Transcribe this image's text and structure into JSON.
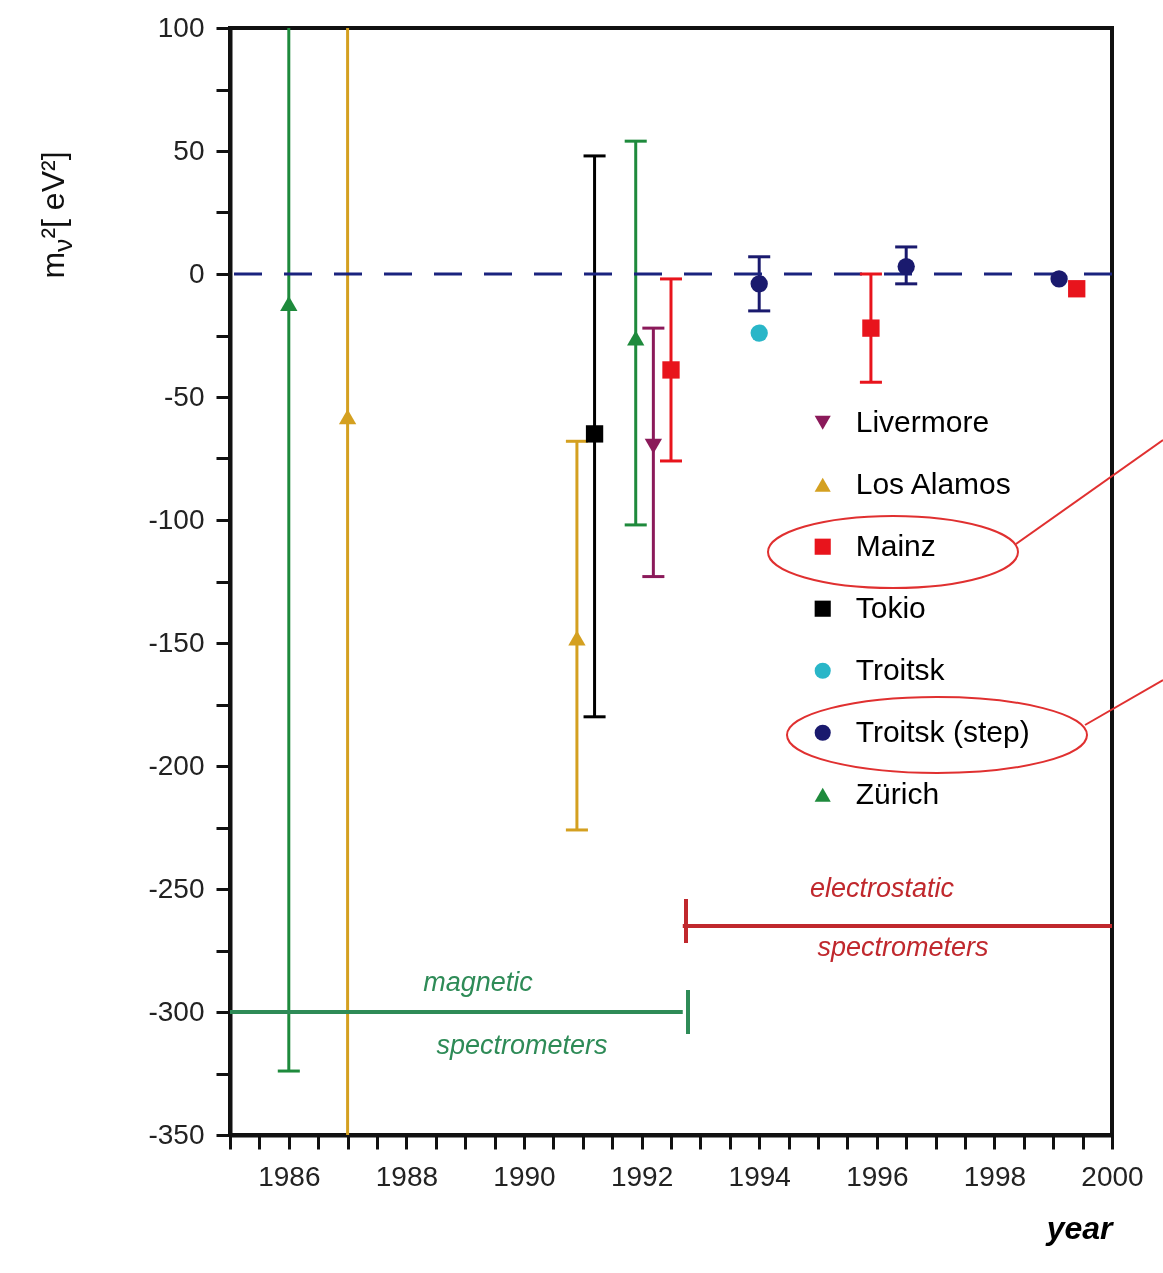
{
  "chart_data": {
    "type": "scatter",
    "xlabel": "year",
    "ylabel": "m$_{ν}$²[ eV²]",
    "xlim": [
      1985,
      2000
    ],
    "ylim": [
      -350,
      100
    ],
    "xticks": [
      {
        "value": 1985,
        "label": null
      },
      {
        "value": 1985.5,
        "label": null
      },
      1986,
      {
        "value": 1986.5,
        "label": null
      },
      {
        "value": 1987,
        "label": null
      },
      {
        "value": 1987.5,
        "label": null
      },
      1988,
      {
        "value": 1988.5,
        "label": null
      },
      {
        "value": 1989,
        "label": null
      },
      {
        "value": 1989.5,
        "label": null
      },
      1990,
      {
        "value": 1990.5,
        "label": null
      },
      {
        "value": 1991,
        "label": null
      },
      {
        "value": 1991.5,
        "label": null
      },
      1992,
      {
        "value": 1992.5,
        "label": null
      },
      {
        "value": 1993,
        "label": null
      },
      {
        "value": 1993.5,
        "label": null
      },
      1994,
      {
        "value": 1994.5,
        "label": null
      },
      {
        "value": 1995,
        "label": null
      },
      {
        "value": 1995.5,
        "label": null
      },
      1996,
      {
        "value": 1996.5,
        "label": null
      },
      {
        "value": 1997,
        "label": null
      },
      {
        "value": 1997.5,
        "label": null
      },
      1998,
      {
        "value": 1998.5,
        "label": null
      },
      {
        "value": 1999,
        "label": null
      },
      {
        "value": 1999.5,
        "label": null
      },
      2000
    ],
    "yticks": [
      -350,
      {
        "value": -325,
        "label": null
      },
      -300,
      {
        "value": -275,
        "label": null
      },
      -250,
      {
        "value": -225,
        "label": null
      },
      -200,
      {
        "value": -175,
        "label": null
      },
      -150,
      {
        "value": -125,
        "label": null
      },
      -100,
      {
        "value": -75,
        "label": null
      },
      -50,
      {
        "value": -25,
        "label": null
      },
      0,
      {
        "value": 25,
        "label": null
      },
      50,
      {
        "value": 75,
        "label": null
      },
      100
    ],
    "grid": false,
    "legend": "right",
    "series": [
      {
        "name": "Livermore",
        "color": "#8b1a5a",
        "marker": "triangle-down",
        "x": [
          1992.2
        ],
        "values": [
          -70
        ],
        "errors": [
          [
            -123,
            -22
          ]
        ]
      },
      {
        "name": "Los Alamos",
        "color": "#d4a020",
        "marker": "triangle",
        "x": [
          1987,
          1990.9
        ],
        "values": [
          -58,
          -148
        ],
        "errors": [
          [
            -350,
            100
          ],
          [
            -226,
            -68
          ]
        ]
      },
      {
        "name": "Mainz",
        "color": "#e8141c",
        "marker": "square",
        "x": [
          1992.5,
          1995.9,
          1999.4
        ],
        "values": [
          -39,
          -22,
          -6
        ],
        "errors": [
          [
            -76,
            -2
          ],
          [
            -44,
            0
          ],
          null
        ]
      },
      {
        "name": "Tokio",
        "color": "#000000",
        "marker": "square",
        "x": [
          1991.2
        ],
        "values": [
          -65
        ],
        "errors": [
          [
            -180,
            48
          ]
        ]
      },
      {
        "name": "Troitsk",
        "color": "#29b6c8",
        "marker": "circle",
        "x": [
          1994
        ],
        "values": [
          -24
        ]
      },
      {
        "name": "Troitsk (step)",
        "color": "#1a1a6e",
        "marker": "circle",
        "x": [
          1994,
          1996.5,
          1999.1
        ],
        "values": [
          -4,
          3,
          -2
        ],
        "errors": [
          [
            -15,
            7
          ],
          [
            -4,
            11
          ],
          null
        ]
      },
      {
        "name": "Zürich",
        "color": "#1e8a3c",
        "marker": "triangle",
        "x": [
          1986,
          1991.9
        ],
        "values": [
          -12,
          -26
        ],
        "errors": [
          [
            -324,
            100
          ],
          [
            -102,
            54
          ]
        ]
      },
      {
        "type": "line",
        "color": "#2e8b57",
        "x": [
          1985,
          1992.7
        ],
        "values": [
          -300,
          -300
        ]
      },
      {
        "type": "line",
        "color": "#c0282d",
        "x": [
          1992.7,
          2000
        ],
        "values": [
          -265,
          -265
        ]
      }
    ],
    "ref_lines": [
      {
        "axis": "y",
        "value": 0,
        "color": "#1a237e",
        "line_style": "dashed"
      }
    ],
    "annotations": [
      "magnetic",
      "spectrometers",
      "electrostatic",
      "spectrometers"
    ]
  }
}
